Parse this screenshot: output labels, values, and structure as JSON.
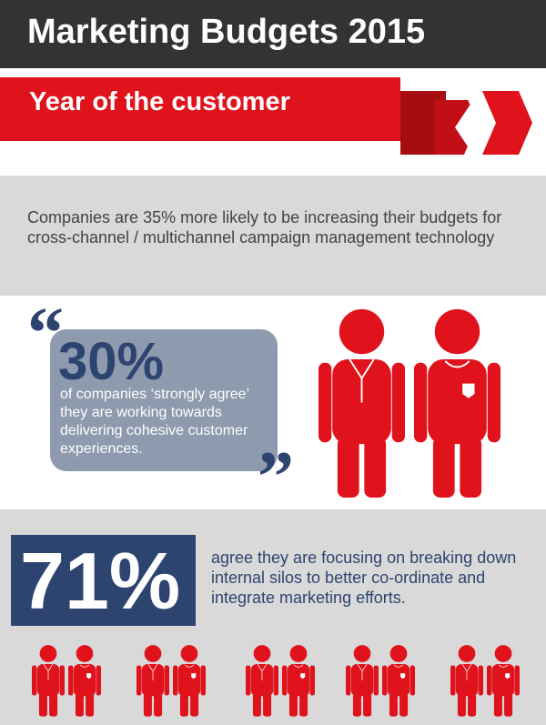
{
  "header": {
    "title": "Marketing Budgets 2015",
    "subtitle": "Year of the customer"
  },
  "fact": {
    "text": "Companies are 35% more likely to be increasing their budgets for cross-channel / multichannel campaign management technology"
  },
  "quote": {
    "open_mark": "“",
    "figure": "30%",
    "text": "of companies ‘strongly agree’ they are working towards delivering cohesive customer experiences.",
    "close_mark": "”"
  },
  "highlight": {
    "figure": "71%",
    "text": "agree they are focusing on breaking down internal silos to better co-ordinate and integrate marketing efforts."
  }
}
